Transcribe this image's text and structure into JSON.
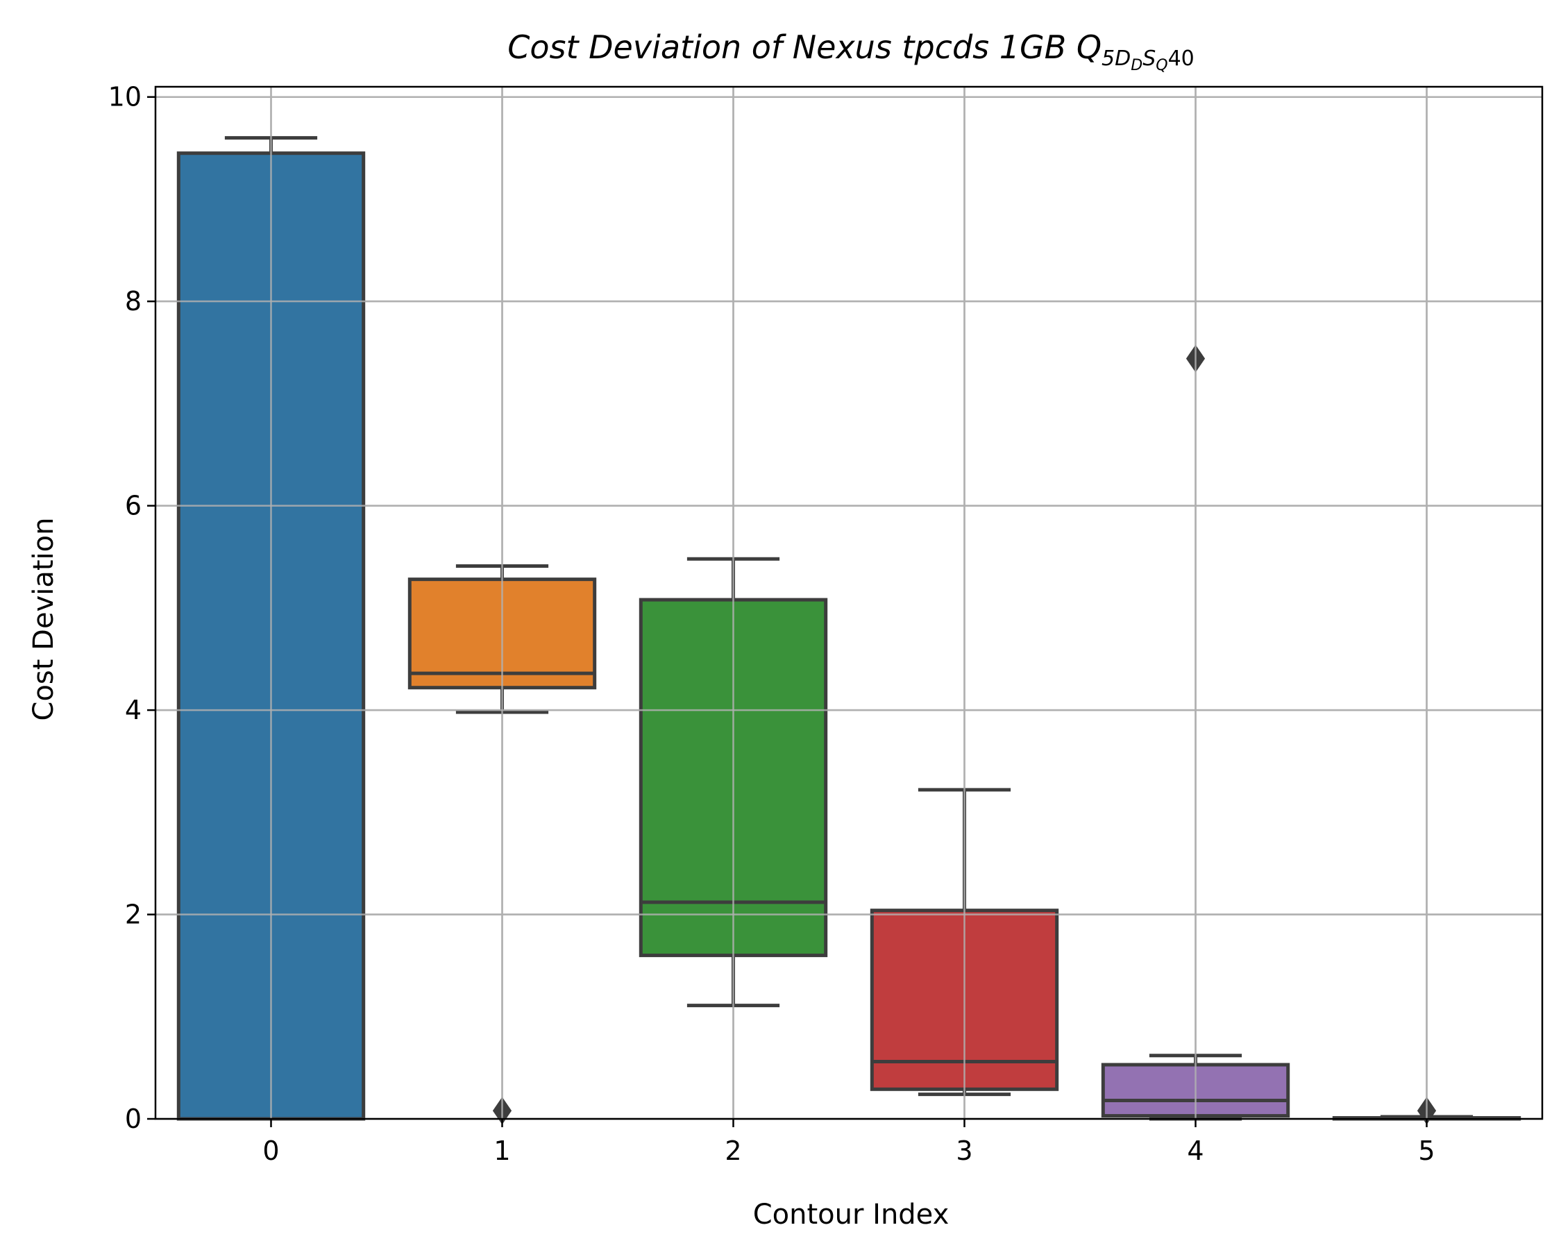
{
  "chart_data": {
    "type": "box",
    "title": {
      "prefix": "Cost Deviation of Nexus tpcds  1GB  ",
      "q": "Q",
      "sub_a": "5D",
      "sub_b": "D",
      "sub_c": "S",
      "sub_d": "Q",
      "suffix": "40"
    },
    "xlabel": "Contour Index",
    "ylabel": "Cost Deviation",
    "ylim": [
      0,
      10.1
    ],
    "yticks": [
      0,
      2,
      4,
      6,
      8,
      10
    ],
    "ytick_labels": [
      "0",
      "2",
      "4",
      "6",
      "8",
      "10"
    ],
    "categories": [
      "0",
      "1",
      "2",
      "3",
      "4",
      "5"
    ],
    "grid": true,
    "boxes": [
      {
        "category": "0",
        "whisker_low": 0.0,
        "q1": 0.0,
        "median": 0.0,
        "q3": 9.45,
        "whisker_high": 9.6,
        "outliers": [],
        "color": "#3274a1"
      },
      {
        "category": "1",
        "whisker_low": 3.98,
        "q1": 4.22,
        "median": 4.36,
        "q3": 5.28,
        "whisker_high": 5.41,
        "outliers": [
          0.08
        ],
        "color": "#e1812c"
      },
      {
        "category": "2",
        "whisker_low": 1.11,
        "q1": 1.6,
        "median": 2.12,
        "q3": 5.08,
        "whisker_high": 5.48,
        "outliers": [],
        "color": "#3a923a"
      },
      {
        "category": "3",
        "whisker_low": 0.24,
        "q1": 0.29,
        "median": 0.56,
        "q3": 2.04,
        "whisker_high": 3.22,
        "outliers": [],
        "color": "#c03d3e"
      },
      {
        "category": "4",
        "whisker_low": 0.0,
        "q1": 0.03,
        "median": 0.18,
        "q3": 0.53,
        "whisker_high": 0.62,
        "outliers": [
          7.44
        ],
        "color": "#9372b2"
      },
      {
        "category": "5",
        "whisker_low": 0.0,
        "q1": 0.0,
        "median": 0.0,
        "q3": 0.01,
        "whisker_high": 0.02,
        "outliers": [
          0.08
        ],
        "color": "#845b53"
      }
    ],
    "colors": {
      "edge": "#3d3d3d",
      "grid": "#b0b0b0",
      "axis": "#000000"
    }
  }
}
